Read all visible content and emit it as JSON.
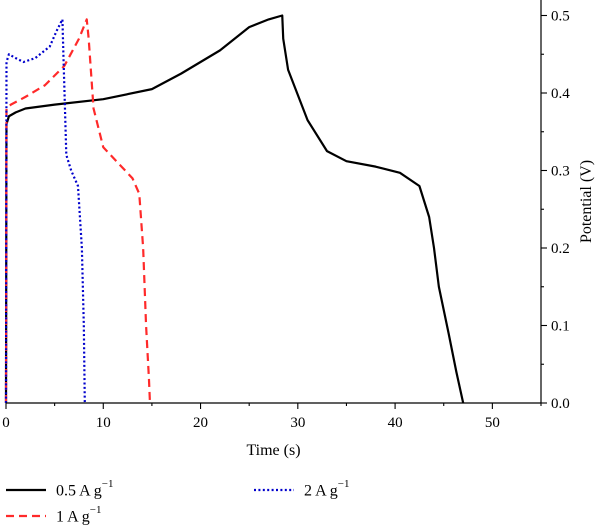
{
  "chart_data": {
    "type": "line",
    "xlabel": "Time (s)",
    "ylabel": "Potential (V)",
    "xlim": [
      0,
      55
    ],
    "ylim": [
      0,
      0.52
    ],
    "x_ticks": [
      0,
      10,
      20,
      30,
      40,
      50
    ],
    "y_ticks": [
      0.0,
      0.1,
      0.2,
      0.3,
      0.4,
      0.5
    ],
    "x_tick_labels": [
      "0",
      "10",
      "20",
      "30",
      "40",
      "50"
    ],
    "y_tick_labels": [
      "0.0",
      "0.1",
      "0.2",
      "0.3",
      "0.4",
      "0.5"
    ],
    "y_axis_side": "right",
    "legend_position": "bottom",
    "series": [
      {
        "name": "0.5 A g",
        "name_sup": "−1",
        "color": "#000000",
        "dash": "solid",
        "points": [
          [
            0,
            0
          ],
          [
            0.05,
            0.36
          ],
          [
            0.3,
            0.37
          ],
          [
            1,
            0.375
          ],
          [
            2,
            0.38
          ],
          [
            5,
            0.385
          ],
          [
            10,
            0.392
          ],
          [
            15,
            0.405
          ],
          [
            18,
            0.425
          ],
          [
            22,
            0.455
          ],
          [
            25,
            0.485
          ],
          [
            27,
            0.495
          ],
          [
            28.4,
            0.5
          ],
          [
            28.5,
            0.47
          ],
          [
            29,
            0.43
          ],
          [
            31,
            0.365
          ],
          [
            33,
            0.325
          ],
          [
            35,
            0.312
          ],
          [
            38,
            0.305
          ],
          [
            40.5,
            0.297
          ],
          [
            42.5,
            0.28
          ],
          [
            43.5,
            0.24
          ],
          [
            44,
            0.2
          ],
          [
            44.5,
            0.15
          ],
          [
            45.5,
            0.09
          ],
          [
            46.3,
            0.04
          ],
          [
            47,
            0
          ]
        ]
      },
      {
        "name": "1 A g",
        "name_sup": "−1",
        "color": "#ff2a2a",
        "dash": "dashed",
        "points": [
          [
            0,
            0
          ],
          [
            0.05,
            0.38
          ],
          [
            0.5,
            0.385
          ],
          [
            2,
            0.395
          ],
          [
            4,
            0.41
          ],
          [
            6,
            0.435
          ],
          [
            7.5,
            0.47
          ],
          [
            8.3,
            0.495
          ],
          [
            8.5,
            0.47
          ],
          [
            9,
            0.38
          ],
          [
            10,
            0.33
          ],
          [
            11.5,
            0.31
          ],
          [
            13,
            0.29
          ],
          [
            13.7,
            0.27
          ],
          [
            14.1,
            0.2
          ],
          [
            14.4,
            0.1
          ],
          [
            14.7,
            0.03
          ],
          [
            14.8,
            0
          ]
        ]
      },
      {
        "name": "2 A g",
        "name_sup": "−1",
        "color": "#0000cc",
        "dash": "dotted",
        "points": [
          [
            0,
            0
          ],
          [
            0.05,
            0.44
          ],
          [
            0.3,
            0.45
          ],
          [
            1,
            0.445
          ],
          [
            1.8,
            0.44
          ],
          [
            3,
            0.445
          ],
          [
            4.5,
            0.46
          ],
          [
            5.2,
            0.48
          ],
          [
            5.8,
            0.495
          ],
          [
            5.9,
            0.45
          ],
          [
            6.2,
            0.32
          ],
          [
            6.7,
            0.3
          ],
          [
            7.4,
            0.28
          ],
          [
            7.8,
            0.2
          ],
          [
            8,
            0.1
          ],
          [
            8.1,
            0
          ]
        ]
      }
    ]
  }
}
